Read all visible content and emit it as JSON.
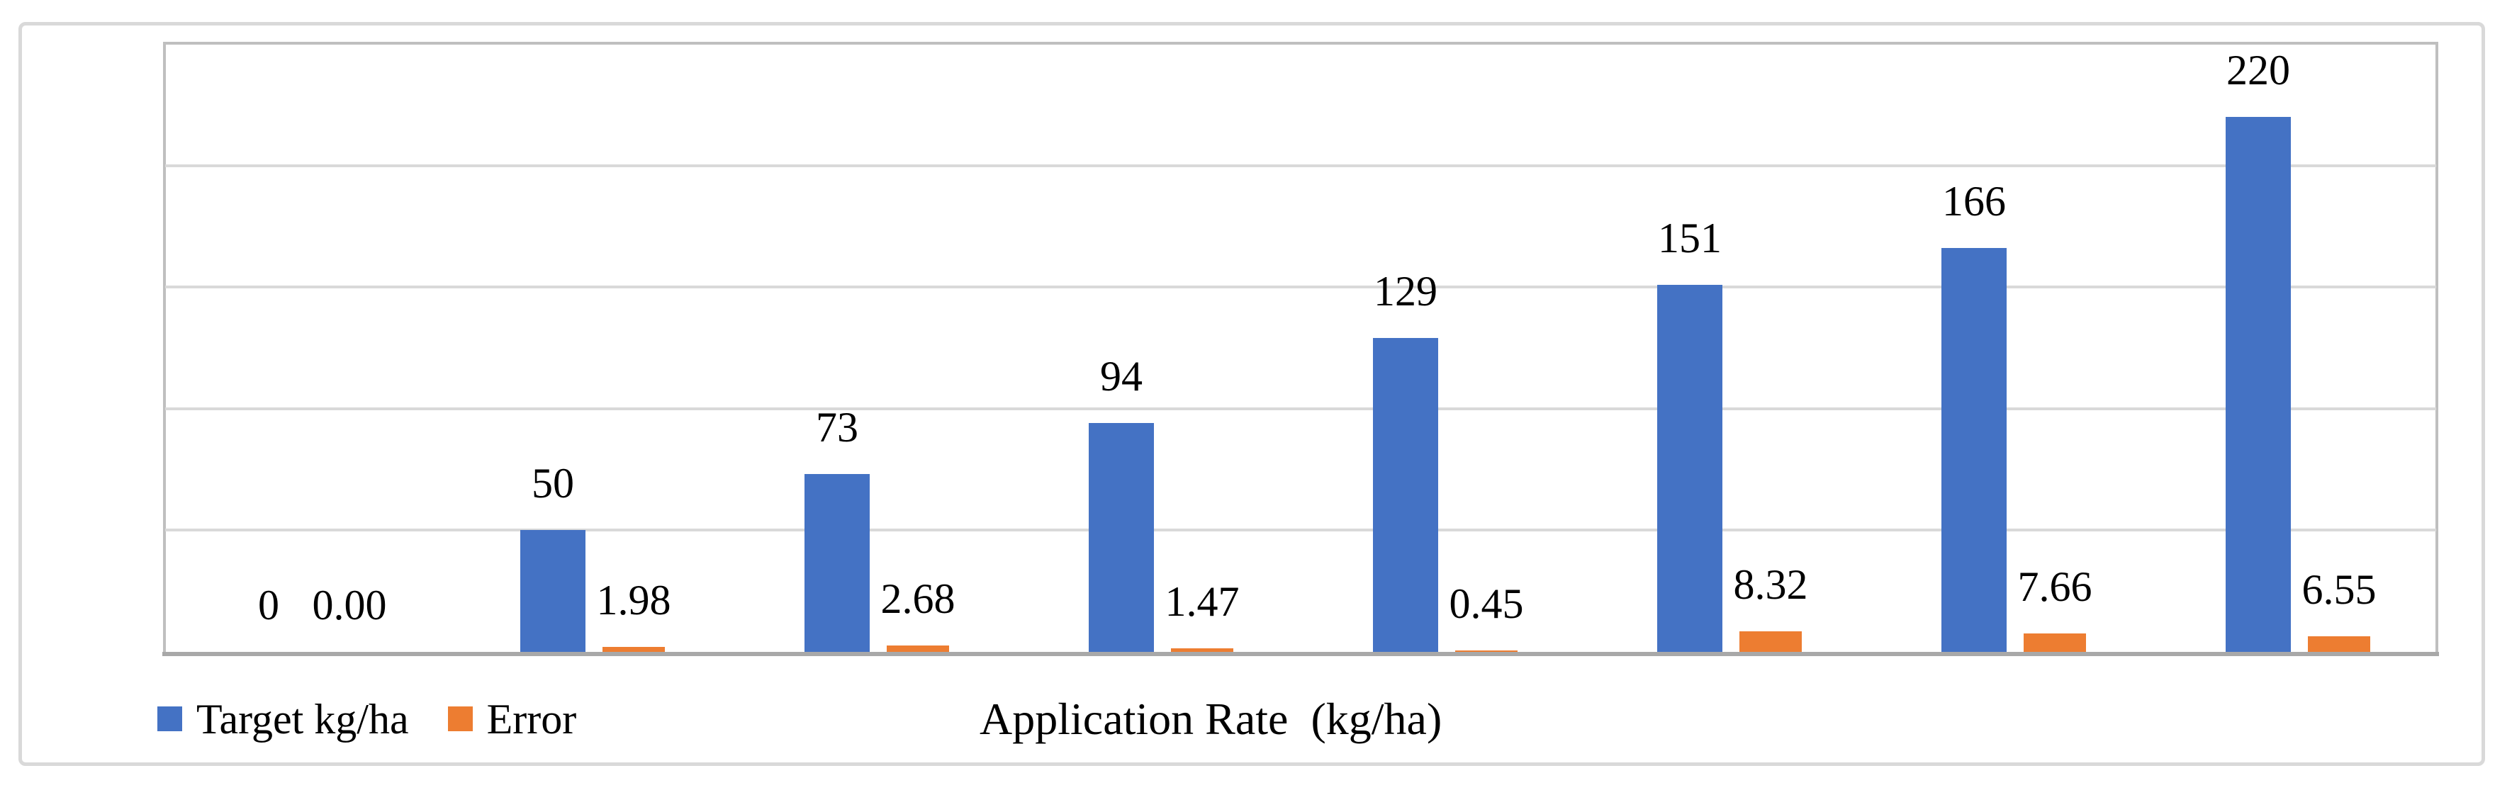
{
  "chart": {
    "legend": [
      {
        "label": "Target kg/ha",
        "color": "#4472C4"
      },
      {
        "label": "Error",
        "color": "#ED7D31"
      }
    ]
  },
  "chart_data": {
    "type": "bar",
    "groups": 8,
    "series": [
      {
        "name": "Target kg/ha",
        "color": "#4472C4",
        "values": [
          0,
          50,
          73,
          94,
          129,
          151,
          166,
          220
        ],
        "data_labels": [
          "0",
          "50",
          "73",
          "94",
          "129",
          "151",
          "166",
          "220"
        ]
      },
      {
        "name": "Error",
        "color": "#ED7D31",
        "values": [
          0.0,
          1.98,
          2.68,
          1.47,
          0.45,
          8.32,
          7.66,
          6.55
        ],
        "data_labels": [
          "0.00",
          "1.98",
          "2.68",
          "1.47",
          "0.45",
          "8.32",
          "7.66",
          "6.55"
        ]
      }
    ],
    "title": "",
    "xlabel": "Application Rate  (kg/ha)",
    "ylabel": "",
    "ylim": [
      0,
      250
    ],
    "grid_step": 50,
    "gridlines": true,
    "data_labels_visible": true,
    "y_axis_tick_labels_visible": false,
    "x_axis_tick_labels_visible": false,
    "legend_position": "bottom-left",
    "colors": {
      "gridline": "#d9d9d9",
      "plot_border": "#bfbfbf",
      "axis_line": "#a8a8a8",
      "chart_border": "#d9d9d9",
      "label_text": "#000000"
    }
  }
}
